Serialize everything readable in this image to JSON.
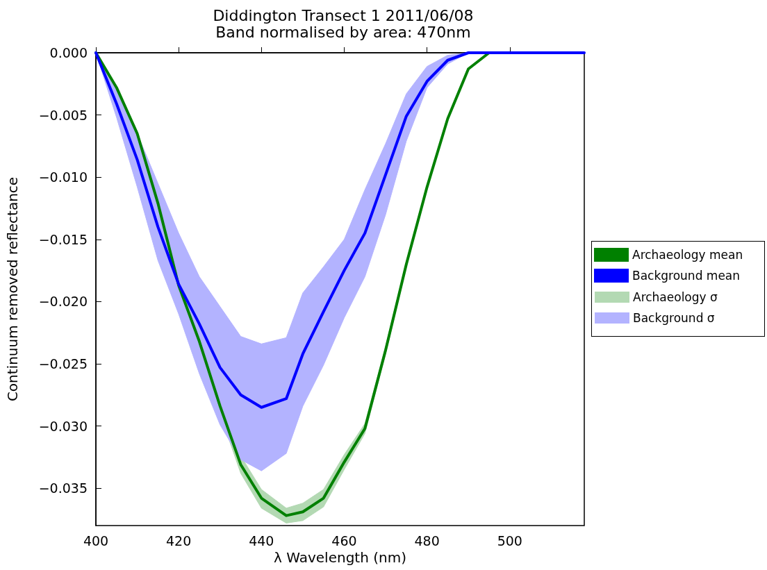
{
  "chart_data": {
    "type": "line",
    "title": "Diddington Transect 1 2011/06/08",
    "subtitle": "Band normalised by area: 470nm",
    "xlabel": "λ Wavelength (nm)",
    "ylabel": "Continuum removed reflectance",
    "x": [
      400,
      405,
      410,
      415,
      420,
      425,
      430,
      435,
      440,
      446,
      450,
      455,
      460,
      465,
      470,
      475,
      480,
      485,
      490,
      495,
      500,
      510,
      518
    ],
    "series": [
      {
        "name": "Archaeology mean",
        "color": "#008000",
        "values": [
          0,
          -0.0028,
          -0.0065,
          -0.0121,
          -0.0187,
          -0.0232,
          -0.0284,
          -0.0331,
          -0.0358,
          -0.0372,
          -0.0369,
          -0.0358,
          -0.0329,
          -0.0302,
          -0.0239,
          -0.017,
          -0.0108,
          -0.0053,
          -0.0013,
          0,
          0,
          null,
          null
        ],
        "lower": [
          0,
          -0.0029,
          -0.0067,
          -0.0124,
          -0.0191,
          -0.0237,
          -0.029,
          -0.0338,
          -0.0366,
          -0.0378,
          -0.0376,
          -0.0365,
          -0.0335,
          -0.0306,
          -0.0242,
          -0.0172,
          -0.0109,
          -0.0054,
          -0.0013,
          0,
          0,
          null,
          null
        ],
        "upper": [
          0,
          -0.0027,
          -0.0063,
          -0.0118,
          -0.0183,
          -0.0227,
          -0.0278,
          -0.0324,
          -0.0351,
          -0.0366,
          -0.0362,
          -0.0351,
          -0.0323,
          -0.0298,
          -0.0236,
          -0.0168,
          -0.0107,
          -0.0052,
          -0.0013,
          0,
          0,
          null,
          null
        ]
      },
      {
        "name": "Background mean",
        "color": "#0000ff",
        "values": [
          0,
          -0.0041,
          -0.0086,
          -0.014,
          -0.0186,
          -0.0218,
          -0.0253,
          -0.0275,
          -0.0285,
          -0.0278,
          -0.0242,
          -0.0208,
          -0.0175,
          -0.0145,
          -0.0098,
          -0.0051,
          -0.0023,
          -0.0006,
          0,
          0,
          0,
          0,
          0
        ],
        "lower": [
          0,
          -0.0052,
          -0.0108,
          -0.0167,
          -0.021,
          -0.0258,
          -0.0299,
          -0.0327,
          -0.0336,
          -0.0322,
          -0.0284,
          -0.0251,
          -0.0213,
          -0.018,
          -0.013,
          -0.0071,
          -0.0028,
          -0.0009,
          0,
          0,
          0,
          0,
          0
        ],
        "upper": [
          0,
          -0.003,
          -0.0065,
          -0.0105,
          -0.0145,
          -0.018,
          -0.0204,
          -0.0228,
          -0.0234,
          -0.0229,
          -0.0193,
          -0.0172,
          -0.015,
          -0.011,
          -0.0073,
          -0.0033,
          -0.0011,
          -0.0002,
          0,
          0,
          0,
          0,
          0
        ]
      }
    ],
    "annotations": [
      "Archaeology σ",
      "Background σ"
    ],
    "xlim": [
      400,
      518
    ],
    "xticks": [
      400,
      420,
      440,
      460,
      480,
      500
    ],
    "ylim": [
      -0.038,
      0
    ],
    "yticks": [
      {
        "value": -0.035,
        "label": "−0.035"
      },
      {
        "value": -0.03,
        "label": "−0.030"
      },
      {
        "value": -0.025,
        "label": "−0.025"
      },
      {
        "value": -0.02,
        "label": "−0.020"
      },
      {
        "value": -0.015,
        "label": "−0.015"
      },
      {
        "value": -0.01,
        "label": "−0.010"
      },
      {
        "value": -0.005,
        "label": "−0.005"
      },
      {
        "value": 0,
        "label": "0.000"
      }
    ],
    "grid": false,
    "legend": "right",
    "line_style": "solid",
    "marker": "none"
  }
}
